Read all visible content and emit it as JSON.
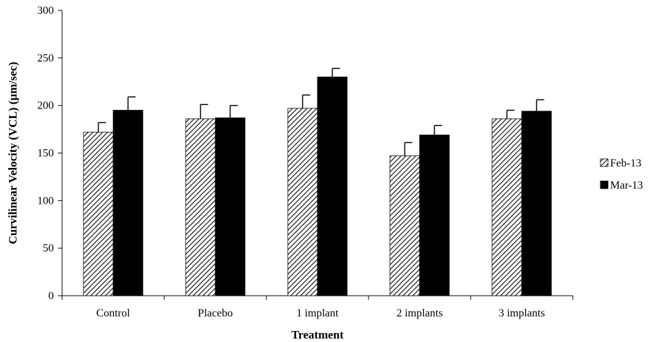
{
  "chart_data": {
    "type": "bar",
    "title": "",
    "xlabel": "Treatment",
    "ylabel": "Curvilinear Velocity (VCL) (µm/sec)",
    "categories": [
      "Control",
      "Placebo",
      "1 implant",
      "2 implants",
      "3 implants"
    ],
    "series": [
      {
        "name": "Feb-13",
        "values": [
          172,
          186,
          197,
          147,
          186
        ],
        "errors": [
          10,
          15,
          14,
          14,
          9
        ],
        "fill": "hatched"
      },
      {
        "name": "Mar-13",
        "values": [
          195,
          187,
          230,
          169,
          194
        ],
        "errors": [
          14,
          13,
          9,
          10,
          12
        ],
        "fill": "#000000"
      }
    ],
    "ylim": [
      0,
      300
    ],
    "yticks": [
      0,
      50,
      100,
      150,
      200,
      250,
      300
    ],
    "grid": false,
    "legend_position": "right"
  }
}
